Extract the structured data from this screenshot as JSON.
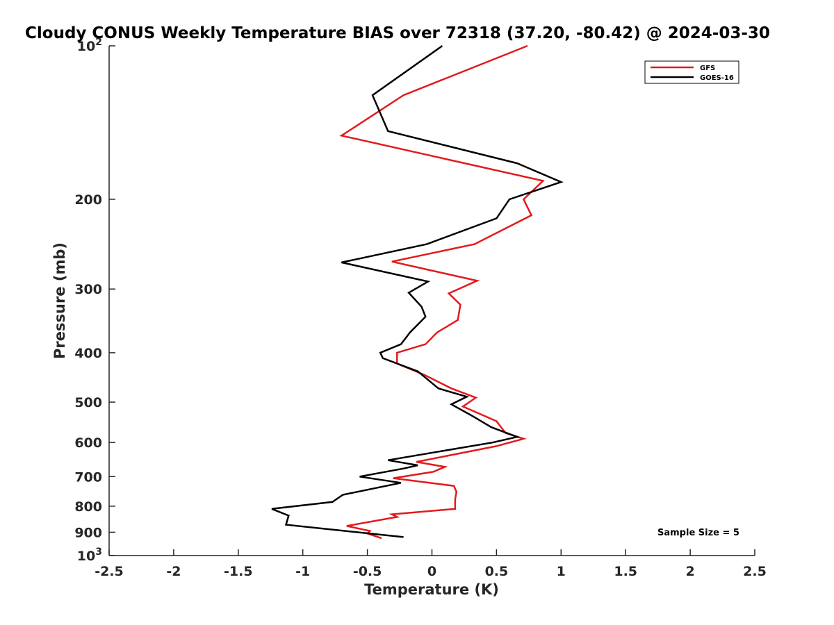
{
  "chart_data": {
    "type": "line",
    "title": "Cloudy CONUS Weekly Temperature BIAS over 72318 (37.20, -80.42) @ 2024-03-30",
    "xlabel": "Temperature (K)",
    "ylabel": "Pressure (mb)",
    "xlim": [
      -2.5,
      2.5
    ],
    "ylim": [
      100,
      1000
    ],
    "yscale": "log",
    "y_reversed": true,
    "grid": false,
    "legend_position": "top-right",
    "x_ticks": [
      "-2.5",
      "-2",
      "-1.5",
      "-1",
      "-0.5",
      "0",
      "0.5",
      "1",
      "1.5",
      "2",
      "2.5"
    ],
    "x_tick_values": [
      -2.5,
      -2,
      -1.5,
      -1,
      -0.5,
      0,
      0.5,
      1,
      1.5,
      2,
      2.5
    ],
    "y_ticks": [
      {
        "value": 100,
        "base": "10",
        "exp": "2"
      },
      {
        "value": 200,
        "label": "200"
      },
      {
        "value": 300,
        "label": "300"
      },
      {
        "value": 400,
        "label": "400"
      },
      {
        "value": 500,
        "label": "500"
      },
      {
        "value": 600,
        "label": "600"
      },
      {
        "value": 700,
        "label": "700"
      },
      {
        "value": 800,
        "label": "800"
      },
      {
        "value": 900,
        "label": "900"
      },
      {
        "value": 1000,
        "base": "10",
        "exp": "3"
      }
    ],
    "annotation": "Sample Size = 5",
    "series": [
      {
        "name": "GFS",
        "color": "#e31a1c",
        "points": [
          [
            0.74,
            100
          ],
          [
            -0.22,
            125
          ],
          [
            -0.7,
            150
          ],
          [
            0.86,
            184
          ],
          [
            0.71,
            200
          ],
          [
            0.77,
            215
          ],
          [
            0.33,
            245
          ],
          [
            -0.31,
            265
          ],
          [
            0.35,
            289
          ],
          [
            0.13,
            306
          ],
          [
            0.22,
            322
          ],
          [
            0.2,
            345
          ],
          [
            0.04,
            365
          ],
          [
            -0.05,
            385
          ],
          [
            -0.27,
            400
          ],
          [
            -0.27,
            420
          ],
          [
            -0.06,
            442
          ],
          [
            0.15,
            470
          ],
          [
            0.34,
            490
          ],
          [
            0.24,
            510
          ],
          [
            0.5,
            545
          ],
          [
            0.57,
            575
          ],
          [
            0.71,
            590
          ],
          [
            0.5,
            610
          ],
          [
            -0.12,
            655
          ],
          [
            0.1,
            670
          ],
          [
            0.01,
            685
          ],
          [
            -0.3,
            705
          ],
          [
            0.17,
            730
          ],
          [
            0.19,
            750
          ],
          [
            0.18,
            775
          ],
          [
            0.18,
            810
          ],
          [
            -0.31,
            830
          ],
          [
            -0.27,
            840
          ],
          [
            -0.66,
            875
          ],
          [
            -0.48,
            895
          ],
          [
            -0.5,
            905
          ],
          [
            -0.39,
            925
          ]
        ]
      },
      {
        "name": "GOES-16",
        "color": "#000000",
        "points": [
          [
            0.08,
            100
          ],
          [
            -0.46,
            125
          ],
          [
            -0.34,
            147
          ],
          [
            0.66,
            170
          ],
          [
            1.0,
            185
          ],
          [
            0.6,
            200
          ],
          [
            0.5,
            218
          ],
          [
            -0.04,
            245
          ],
          [
            -0.7,
            266
          ],
          [
            -0.03,
            290
          ],
          [
            -0.18,
            305
          ],
          [
            -0.08,
            325
          ],
          [
            -0.05,
            340
          ],
          [
            -0.17,
            365
          ],
          [
            -0.24,
            385
          ],
          [
            -0.4,
            400
          ],
          [
            -0.38,
            410
          ],
          [
            -0.11,
            435
          ],
          [
            0.05,
            470
          ],
          [
            0.27,
            488
          ],
          [
            0.15,
            505
          ],
          [
            0.3,
            530
          ],
          [
            0.46,
            560
          ],
          [
            0.66,
            585
          ],
          [
            0.47,
            600
          ],
          [
            -0.34,
            650
          ],
          [
            -0.11,
            665
          ],
          [
            -0.22,
            675
          ],
          [
            -0.56,
            700
          ],
          [
            -0.24,
            720
          ],
          [
            -0.69,
            760
          ],
          [
            -0.77,
            785
          ],
          [
            -1.24,
            810
          ],
          [
            -1.11,
            835
          ],
          [
            -1.13,
            870
          ],
          [
            -0.22,
            920
          ]
        ]
      }
    ]
  }
}
